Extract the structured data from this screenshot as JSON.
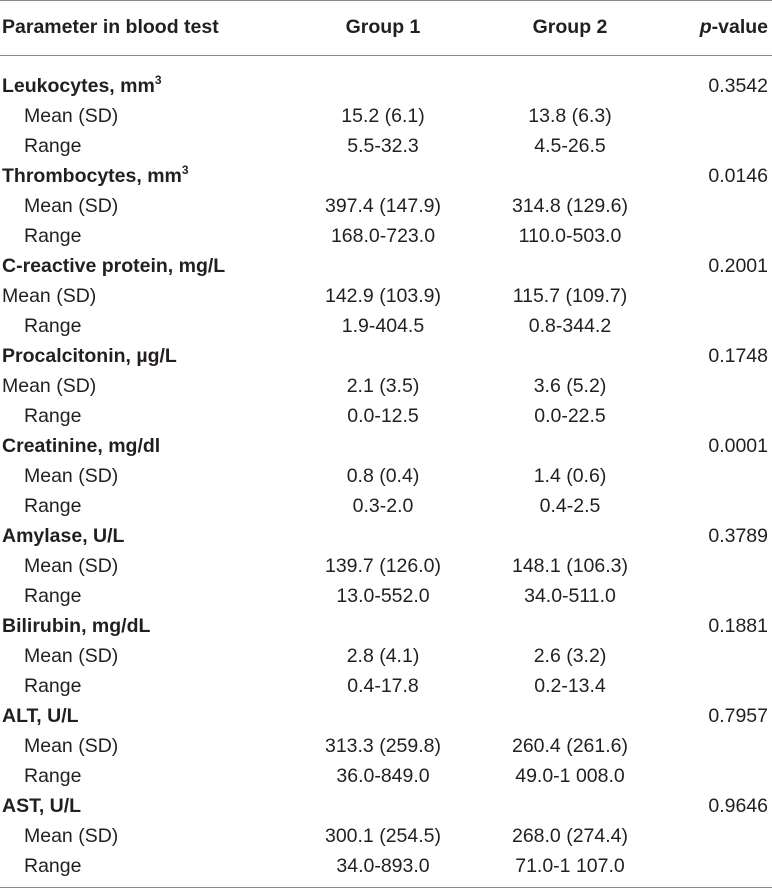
{
  "header": {
    "param": "Parameter in blood test",
    "group1": "Group 1",
    "group2": "Group 2",
    "p_italic": "p",
    "p_rest": "-value"
  },
  "rows": [
    {
      "name": "Leukocytes, mm",
      "sup": "3",
      "p": "0.3542"
    },
    {
      "label": "Mean (SD)",
      "g1": "15.2 (6.1)",
      "g2": "13.8 (6.3)",
      "indent": true
    },
    {
      "label": "Range",
      "g1": "5.5-32.3",
      "g2": "4.5-26.5",
      "indent": true
    },
    {
      "name": "Thrombocytes, mm",
      "sup": "3",
      "p": "0.0146"
    },
    {
      "label": "Mean (SD)",
      "g1": "397.4 (147.9)",
      "g2": "314.8 (129.6)",
      "indent": true
    },
    {
      "label": "Range",
      "g1": "168.0-723.0",
      "g2": "110.0-503.0",
      "indent": true
    },
    {
      "name": "C-reactive protein, mg/L",
      "sup": "",
      "p": "0.2001"
    },
    {
      "label": "Mean (SD)",
      "g1": "142.9 (103.9)",
      "g2": "115.7 (109.7)",
      "indent": false
    },
    {
      "label": "Range",
      "g1": "1.9-404.5",
      "g2": "0.8-344.2",
      "indent": true
    },
    {
      "name": "Procalcitonin, µg/L",
      "sup": "",
      "p": "0.1748"
    },
    {
      "label": "Mean (SD)",
      "g1": "2.1 (3.5)",
      "g2": "3.6 (5.2)",
      "indent": false
    },
    {
      "label": "Range",
      "g1": "0.0-12.5",
      "g2": "0.0-22.5",
      "indent": true
    },
    {
      "name": "Creatinine, mg/dl",
      "sup": "",
      "p": "0.0001"
    },
    {
      "label": "Mean (SD)",
      "g1": "0.8 (0.4)",
      "g2": "1.4 (0.6)",
      "indent": true
    },
    {
      "label": "Range",
      "g1": "0.3-2.0",
      "g2": "0.4-2.5",
      "indent": true
    },
    {
      "name": "Amylase, U/L",
      "sup": "",
      "p": "0.3789"
    },
    {
      "label": "Mean (SD)",
      "g1": "139.7 (126.0)",
      "g2": "148.1 (106.3)",
      "indent": true
    },
    {
      "label": "Range",
      "g1": "13.0-552.0",
      "g2": "34.0-511.0",
      "indent": true
    },
    {
      "name": "Bilirubin, mg/dL",
      "sup": "",
      "p": "0.1881"
    },
    {
      "label": "Mean (SD)",
      "g1": "2.8 (4.1)",
      "g2": "2.6 (3.2)",
      "indent": true
    },
    {
      "label": "Range",
      "g1": "0.4-17.8",
      "g2": "0.2-13.4",
      "indent": true
    },
    {
      "name": "ALT, U/L",
      "sup": "",
      "p": "0.7957"
    },
    {
      "label": "Mean (SD)",
      "g1": "313.3 (259.8)",
      "g2": "260.4 (261.6)",
      "indent": true
    },
    {
      "label": "Range",
      "g1": "36.0-849.0",
      "g2": "49.0-1 008.0",
      "indent": true
    },
    {
      "name": "AST, U/L",
      "sup": "",
      "p": "0.9646"
    },
    {
      "label": "Mean (SD)",
      "g1": "300.1 (254.5)",
      "g2": "268.0 (274.4)",
      "indent": true
    },
    {
      "label": "Range",
      "g1": "34.0-893.0",
      "g2": "71.0-1 107.0",
      "indent": true
    }
  ]
}
